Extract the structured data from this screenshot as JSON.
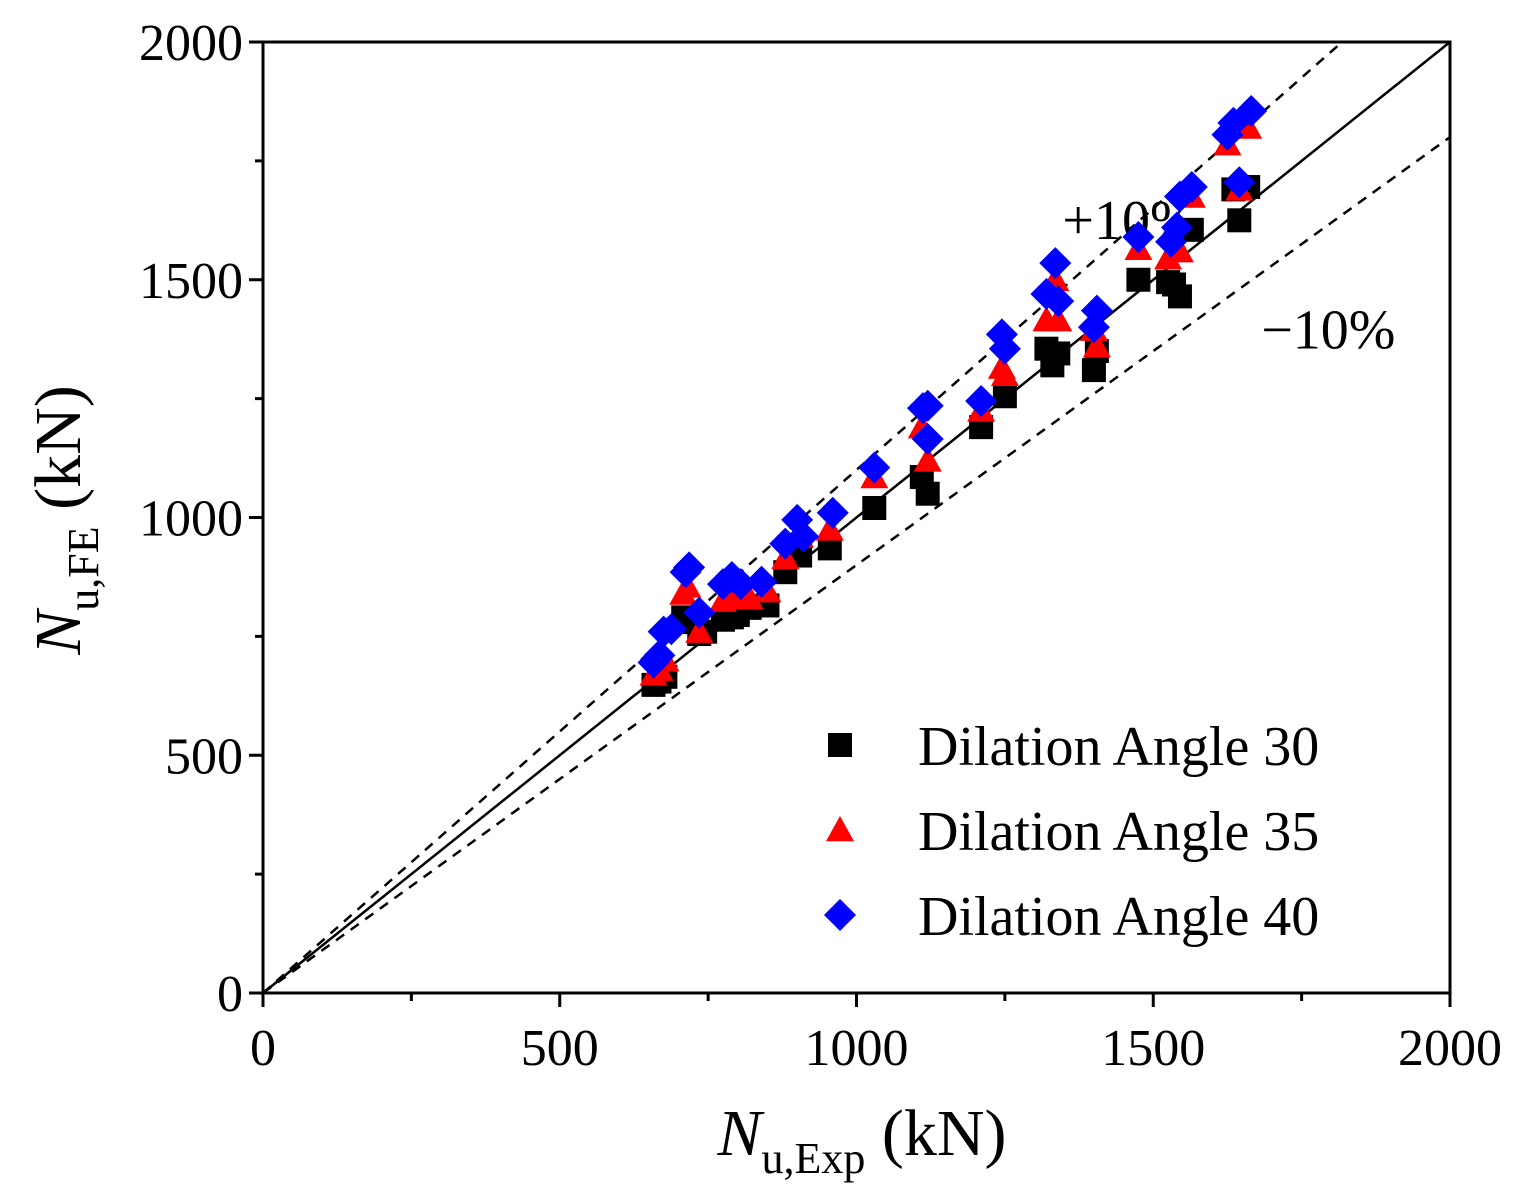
{
  "chart_data": {
    "type": "scatter",
    "x_label": {
      "italic": "N",
      "sub": "u,Exp",
      "unit": " (kN)"
    },
    "y_label": {
      "italic": "N",
      "sub": "u,FE",
      "unit": " (kN)"
    },
    "xlim": [
      0,
      2000
    ],
    "ylim": [
      0,
      2000
    ],
    "x_ticks": [
      0,
      500,
      1000,
      1500,
      2000
    ],
    "y_ticks": [
      0,
      500,
      1000,
      1500,
      2000
    ],
    "x_tick_labels": [
      "0",
      "500",
      "1000",
      "1500",
      "2000"
    ],
    "y_tick_labels": [
      "0",
      "500",
      "1000",
      "1500",
      "2000"
    ],
    "grid": false,
    "legend_position": "bottom-right",
    "reference_lines": [
      {
        "slope": 1.0,
        "style": "solid"
      },
      {
        "slope": 1.1,
        "style": "dashed",
        "label": "+10%"
      },
      {
        "slope": 0.9,
        "style": "dashed",
        "label": "−10%"
      }
    ],
    "series": [
      {
        "name": "Dilation Angle 30",
        "marker": "square",
        "color": "#000000",
        "points": [
          [
            658,
            648
          ],
          [
            668,
            655
          ],
          [
            678,
            665
          ],
          [
            708,
            790
          ],
          [
            715,
            780
          ],
          [
            735,
            755
          ],
          [
            745,
            760
          ],
          [
            775,
            785
          ],
          [
            790,
            790
          ],
          [
            800,
            795
          ],
          [
            820,
            810
          ],
          [
            850,
            815
          ],
          [
            880,
            885
          ],
          [
            905,
            920
          ],
          [
            955,
            935
          ],
          [
            1030,
            1020
          ],
          [
            1110,
            1085
          ],
          [
            1120,
            1050
          ],
          [
            1210,
            1190
          ],
          [
            1250,
            1255
          ],
          [
            1320,
            1355
          ],
          [
            1330,
            1320
          ],
          [
            1340,
            1345
          ],
          [
            1400,
            1310
          ],
          [
            1405,
            1350
          ],
          [
            1475,
            1500
          ],
          [
            1525,
            1495
          ],
          [
            1535,
            1490
          ],
          [
            1545,
            1465
          ],
          [
            1565,
            1605
          ],
          [
            1635,
            1690
          ],
          [
            1645,
            1625
          ],
          [
            1660,
            1695
          ]
        ]
      },
      {
        "name": "Dilation Angle 35",
        "marker": "triangle",
        "color": "#ff0000",
        "points": [
          [
            658,
            670
          ],
          [
            668,
            680
          ],
          [
            678,
            700
          ],
          [
            708,
            840
          ],
          [
            715,
            855
          ],
          [
            735,
            760
          ],
          [
            775,
            825
          ],
          [
            790,
            830
          ],
          [
            820,
            830
          ],
          [
            850,
            845
          ],
          [
            880,
            915
          ],
          [
            905,
            960
          ],
          [
            955,
            975
          ],
          [
            1030,
            1085
          ],
          [
            1110,
            1190
          ],
          [
            1120,
            1120
          ],
          [
            1210,
            1225
          ],
          [
            1245,
            1315
          ],
          [
            1250,
            1300
          ],
          [
            1320,
            1415
          ],
          [
            1335,
            1500
          ],
          [
            1340,
            1415
          ],
          [
            1400,
            1395
          ],
          [
            1405,
            1360
          ],
          [
            1475,
            1565
          ],
          [
            1525,
            1545
          ],
          [
            1545,
            1560
          ],
          [
            1565,
            1675
          ],
          [
            1625,
            1785
          ],
          [
            1645,
            1690
          ],
          [
            1660,
            1820
          ]
        ]
      },
      {
        "name": "Dilation Angle 40",
        "marker": "diamond",
        "color": "#0000ff",
        "points": [
          [
            658,
            695
          ],
          [
            668,
            710
          ],
          [
            675,
            760
          ],
          [
            688,
            765
          ],
          [
            712,
            885
          ],
          [
            718,
            895
          ],
          [
            735,
            800
          ],
          [
            775,
            860
          ],
          [
            790,
            875
          ],
          [
            805,
            860
          ],
          [
            840,
            865
          ],
          [
            880,
            945
          ],
          [
            900,
            995
          ],
          [
            910,
            960
          ],
          [
            960,
            1010
          ],
          [
            1030,
            1105
          ],
          [
            1112,
            1230
          ],
          [
            1120,
            1235
          ],
          [
            1120,
            1165
          ],
          [
            1210,
            1245
          ],
          [
            1245,
            1385
          ],
          [
            1250,
            1355
          ],
          [
            1320,
            1470
          ],
          [
            1335,
            1535
          ],
          [
            1340,
            1455
          ],
          [
            1400,
            1400
          ],
          [
            1405,
            1435
          ],
          [
            1475,
            1590
          ],
          [
            1530,
            1580
          ],
          [
            1540,
            1610
          ],
          [
            1545,
            1675
          ],
          [
            1565,
            1695
          ],
          [
            1625,
            1805
          ],
          [
            1635,
            1830
          ],
          [
            1645,
            1705
          ],
          [
            1665,
            1855
          ]
        ]
      }
    ]
  }
}
